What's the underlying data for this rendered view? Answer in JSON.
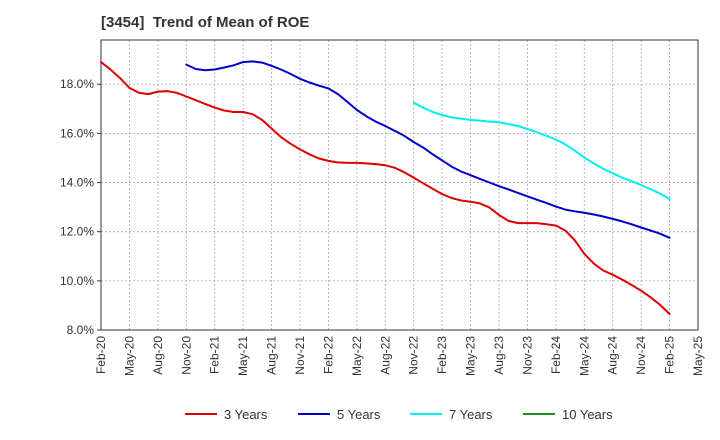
{
  "chart_data": {
    "type": "line",
    "title": "[3454]  Trend of Mean of ROE",
    "xlabel": "",
    "ylabel": "",
    "x_ticks": [
      "Feb-20",
      "May-20",
      "Aug-20",
      "Nov-20",
      "Feb-21",
      "May-21",
      "Aug-21",
      "Nov-21",
      "Feb-22",
      "May-22",
      "Aug-22",
      "Nov-22",
      "Feb-23",
      "May-23",
      "Aug-23",
      "Nov-23",
      "Feb-24",
      "May-24",
      "Aug-24",
      "Nov-24",
      "Feb-25",
      "May-25"
    ],
    "y_ticks": [
      "8.0%",
      "10.0%",
      "12.0%",
      "14.0%",
      "16.0%",
      "18.0%"
    ],
    "ylim": [
      8.0,
      19.8
    ],
    "grid": true,
    "legend_position": "bottom",
    "series": [
      {
        "name": "3 Years",
        "color": "#dd0000",
        "x": [
          "Feb-20",
          "Mar-20",
          "Apr-20",
          "May-20",
          "Jun-20",
          "Jul-20",
          "Aug-20",
          "Sep-20",
          "Oct-20",
          "Nov-20",
          "Dec-20",
          "Jan-21",
          "Feb-21",
          "Mar-21",
          "Apr-21",
          "May-21",
          "Jun-21",
          "Jul-21",
          "Aug-21",
          "Sep-21",
          "Oct-21",
          "Nov-21",
          "Dec-21",
          "Jan-22",
          "Feb-22",
          "Mar-22",
          "Apr-22",
          "May-22",
          "Jun-22",
          "Jul-22",
          "Aug-22",
          "Sep-22",
          "Oct-22",
          "Nov-22",
          "Dec-22",
          "Jan-23",
          "Feb-23",
          "Mar-23",
          "Apr-23",
          "May-23",
          "Jun-23",
          "Jul-23",
          "Aug-23",
          "Sep-23",
          "Oct-23",
          "Nov-23",
          "Dec-23",
          "Jan-24",
          "Feb-24",
          "Mar-24",
          "Apr-24",
          "May-24",
          "Jun-24",
          "Jul-24",
          "Aug-24",
          "Sep-24",
          "Oct-24",
          "Nov-24",
          "Dec-24",
          "Jan-25",
          "Feb-25"
        ],
        "values": [
          18.9,
          18.6,
          18.25,
          17.85,
          17.65,
          17.6,
          17.7,
          17.72,
          17.65,
          17.5,
          17.35,
          17.2,
          17.05,
          16.93,
          16.87,
          16.87,
          16.78,
          16.55,
          16.2,
          15.85,
          15.58,
          15.35,
          15.15,
          14.98,
          14.88,
          14.82,
          14.8,
          14.8,
          14.78,
          14.75,
          14.7,
          14.6,
          14.42,
          14.2,
          13.97,
          13.75,
          13.53,
          13.37,
          13.27,
          13.22,
          13.15,
          12.98,
          12.68,
          12.44,
          12.35,
          12.35,
          12.35,
          12.3,
          12.25,
          12.05,
          11.65,
          11.1,
          10.7,
          10.42,
          10.25,
          10.05,
          9.83,
          9.6,
          9.33,
          9.02,
          8.65
        ]
      },
      {
        "name": "5 Years",
        "color": "#0000cc",
        "x": [
          "Nov-20",
          "Dec-20",
          "Jan-21",
          "Feb-21",
          "Mar-21",
          "Apr-21",
          "May-21",
          "Jun-21",
          "Jul-21",
          "Aug-21",
          "Sep-21",
          "Oct-21",
          "Nov-21",
          "Dec-21",
          "Jan-22",
          "Feb-22",
          "Mar-22",
          "Apr-22",
          "May-22",
          "Jun-22",
          "Jul-22",
          "Aug-22",
          "Sep-22",
          "Oct-22",
          "Nov-22",
          "Dec-22",
          "Jan-23",
          "Feb-23",
          "Mar-23",
          "Apr-23",
          "May-23",
          "Jun-23",
          "Jul-23",
          "Aug-23",
          "Sep-23",
          "Oct-23",
          "Nov-23",
          "Dec-23",
          "Jan-24",
          "Feb-24",
          "Mar-24",
          "Apr-24",
          "May-24",
          "Jun-24",
          "Jul-24",
          "Aug-24",
          "Sep-24",
          "Oct-24",
          "Nov-24",
          "Dec-24",
          "Jan-25",
          "Feb-25"
        ],
        "values": [
          18.8,
          18.62,
          18.57,
          18.6,
          18.68,
          18.77,
          18.9,
          18.93,
          18.88,
          18.75,
          18.6,
          18.42,
          18.22,
          18.07,
          17.94,
          17.83,
          17.6,
          17.28,
          16.95,
          16.7,
          16.48,
          16.3,
          16.1,
          15.9,
          15.65,
          15.42,
          15.15,
          14.9,
          14.65,
          14.45,
          14.3,
          14.15,
          14.0,
          13.85,
          13.72,
          13.58,
          13.44,
          13.3,
          13.17,
          13.02,
          12.9,
          12.83,
          12.77,
          12.7,
          12.62,
          12.52,
          12.42,
          12.3,
          12.17,
          12.05,
          11.92,
          11.75
        ]
      },
      {
        "name": "7 Years",
        "color": "#00eeee",
        "x": [
          "Nov-22",
          "Dec-22",
          "Jan-23",
          "Feb-23",
          "Mar-23",
          "Apr-23",
          "May-23",
          "Jun-23",
          "Jul-23",
          "Aug-23",
          "Sep-23",
          "Oct-23",
          "Nov-23",
          "Dec-23",
          "Jan-24",
          "Feb-24",
          "Mar-24",
          "Apr-24",
          "May-24",
          "Jun-24",
          "Jul-24",
          "Aug-24",
          "Sep-24",
          "Oct-24",
          "Nov-24",
          "Dec-24",
          "Jan-25",
          "Feb-25"
        ],
        "values": [
          17.25,
          17.05,
          16.87,
          16.75,
          16.65,
          16.6,
          16.55,
          16.52,
          16.48,
          16.45,
          16.38,
          16.3,
          16.18,
          16.05,
          15.9,
          15.75,
          15.55,
          15.3,
          15.02,
          14.78,
          14.56,
          14.38,
          14.2,
          14.05,
          13.9,
          13.73,
          13.55,
          13.33
        ]
      },
      {
        "name": "10 Years",
        "color": "#228b22",
        "x": [],
        "values": []
      }
    ]
  }
}
